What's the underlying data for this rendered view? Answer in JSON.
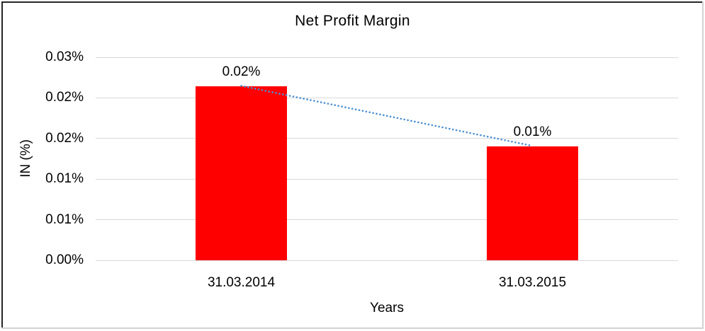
{
  "chart": {
    "title": "Net Profit Margin",
    "y_axis_title": "IN (%)",
    "x_axis_title": "Years"
  },
  "chart_data": {
    "type": "bar",
    "title": "Net Profit Margin",
    "xlabel": "Years",
    "ylabel": "IN (%)",
    "categories": [
      "31.03.2014",
      "31.03.2015"
    ],
    "series": [
      {
        "name": "Net Profit Margin",
        "values_displayed": [
          "0.02%",
          "0.01%"
        ],
        "values_estimated_pct": [
          0.0214,
          0.014
        ]
      }
    ],
    "y_axis": {
      "min_pct": 0,
      "max_pct": 0.025,
      "tick_step_pct": 0.005,
      "tick_labels_top_to_bottom": [
        "0.03%",
        "0.02%",
        "0.02%",
        "0.01%",
        "0.01%",
        "0.00%"
      ]
    },
    "grid": true,
    "legend": "none",
    "trendline": {
      "type": "linear",
      "style": "dotted",
      "connects": [
        "31.03.2014",
        "31.03.2015"
      ]
    },
    "colors": {
      "bar": "#ff0000",
      "gridline": "#d9d9d9",
      "text": "#000000",
      "trendline": "#4a8fd3",
      "frame_dark": "#262626",
      "frame_light": "#d2d2d2"
    }
  }
}
